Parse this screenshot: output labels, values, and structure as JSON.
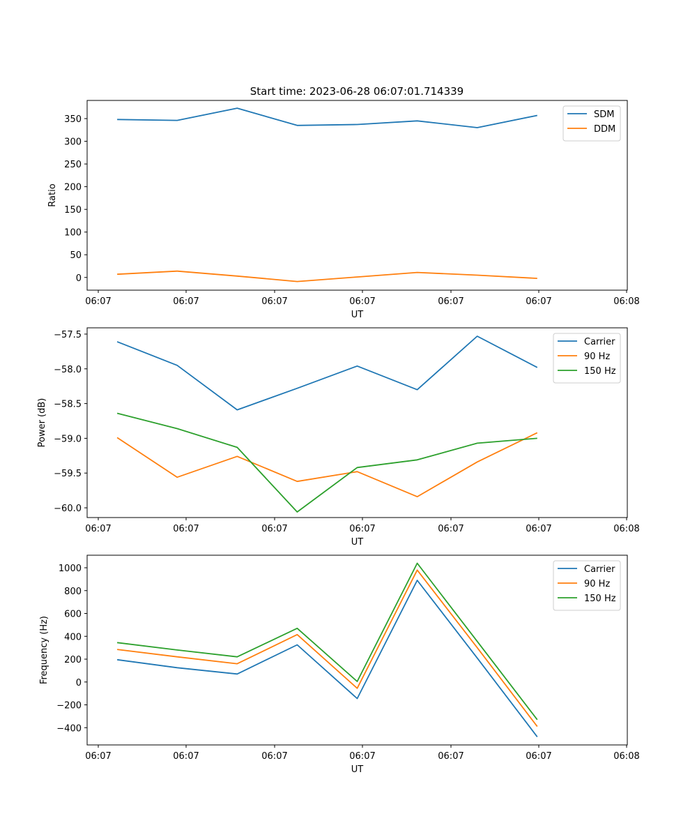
{
  "figure": {
    "title": "Start time: 2023-06-28 06:07:01.714339"
  },
  "chart_data": [
    {
      "type": "line",
      "xlabel": "UT",
      "ylabel": "Ratio",
      "xtick_labels": [
        "06:07",
        "06:07",
        "06:07",
        "06:07",
        "06:07",
        "06:07",
        "06:08"
      ],
      "x": [
        1,
        2,
        3,
        4,
        5,
        6,
        7,
        8
      ],
      "xlim": [
        0.5,
        9.5
      ],
      "ylim": [
        -28,
        390
      ],
      "yticks": [
        0,
        50,
        100,
        150,
        200,
        250,
        300,
        350
      ],
      "legend": "top-right",
      "grid": false,
      "series": [
        {
          "name": "SDM",
          "color": "#1f77b4",
          "values": [
            348,
            346,
            373,
            335,
            337,
            345,
            330,
            357
          ]
        },
        {
          "name": "DDM",
          "color": "#ff7f0e",
          "values": [
            7,
            14,
            3,
            -9,
            1,
            11,
            5,
            -2
          ]
        }
      ]
    },
    {
      "type": "line",
      "xlabel": "UT",
      "ylabel": "Power (dB)",
      "xtick_labels": [
        "06:07",
        "06:07",
        "06:07",
        "06:07",
        "06:07",
        "06:07",
        "06:08"
      ],
      "x": [
        1,
        2,
        3,
        4,
        5,
        6,
        7,
        8
      ],
      "xlim": [
        0.5,
        9.5
      ],
      "ylim": [
        -60.14,
        -57.41
      ],
      "yticks": [
        -60.0,
        -59.5,
        -59.0,
        -58.5,
        -58.0,
        -57.5
      ],
      "ytick_labels": [
        "−60.0",
        "−59.5",
        "−59.0",
        "−58.5",
        "−58.0",
        "−57.5"
      ],
      "legend": "top-right",
      "grid": false,
      "series": [
        {
          "name": "Carrier",
          "color": "#1f77b4",
          "values": [
            -57.61,
            -57.95,
            -58.59,
            -58.28,
            -57.96,
            -58.3,
            -57.53,
            -57.98
          ]
        },
        {
          "name": "90 Hz",
          "color": "#ff7f0e",
          "values": [
            -58.99,
            -59.56,
            -59.26,
            -59.62,
            -59.48,
            -59.84,
            -59.34,
            -58.92
          ]
        },
        {
          "name": "150 Hz",
          "color": "#2ca02c",
          "values": [
            -58.64,
            -58.86,
            -59.13,
            -60.06,
            -59.42,
            -59.31,
            -59.07,
            -59.0
          ]
        }
      ]
    },
    {
      "type": "line",
      "xlabel": "UT",
      "ylabel": "Frequency (Hz)",
      "xtick_labels": [
        "06:07",
        "06:07",
        "06:07",
        "06:07",
        "06:07",
        "06:07",
        "06:08"
      ],
      "x": [
        1,
        2,
        3,
        4,
        5,
        6,
        7,
        8
      ],
      "xlim": [
        0.5,
        9.5
      ],
      "ylim": [
        -551,
        1110
      ],
      "yticks": [
        -400,
        -200,
        0,
        200,
        400,
        600,
        800,
        1000
      ],
      "ytick_labels": [
        "−400",
        "−200",
        "0",
        "200",
        "400",
        "600",
        "800",
        "1000"
      ],
      "legend": "top-right",
      "grid": false,
      "series": [
        {
          "name": "Carrier",
          "color": "#1f77b4",
          "values": [
            195,
            125,
            70,
            325,
            -145,
            890,
            210,
            -480
          ]
        },
        {
          "name": "90 Hz",
          "color": "#ff7f0e",
          "values": [
            285,
            220,
            160,
            415,
            -55,
            980,
            300,
            -390
          ]
        },
        {
          "name": "150 Hz",
          "color": "#2ca02c",
          "values": [
            345,
            280,
            220,
            470,
            5,
            1040,
            355,
            -330
          ]
        }
      ]
    }
  ]
}
